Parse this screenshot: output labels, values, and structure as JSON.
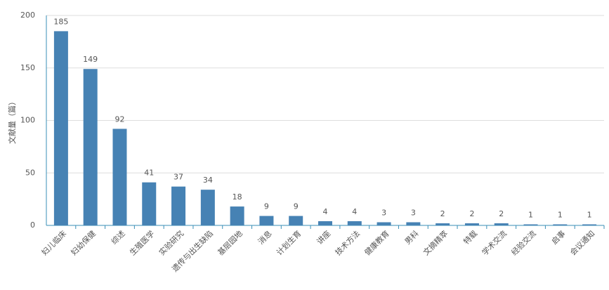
{
  "chart_data": {
    "type": "bar",
    "y_label": "文献量（篇）",
    "categories": [
      "妇儿临床",
      "妇幼保健",
      "综述",
      "生殖医学",
      "实验研究",
      "遗传与出生缺陷",
      "基层园地",
      "消息",
      "计划生育",
      "讲座",
      "技术方法",
      "健康教育",
      "男科",
      "文摘精萃",
      "特载",
      "学术交流",
      "经验交流",
      "启事",
      "会议通知"
    ],
    "values": [
      185,
      149,
      92,
      41,
      37,
      34,
      18,
      9,
      9,
      4,
      4,
      3,
      3,
      2,
      2,
      2,
      1,
      1,
      1
    ],
    "color": "#4682b4",
    "ylim": [
      0,
      200
    ],
    "yticks": [
      0,
      50,
      100,
      150,
      200
    ],
    "grid": true
  }
}
